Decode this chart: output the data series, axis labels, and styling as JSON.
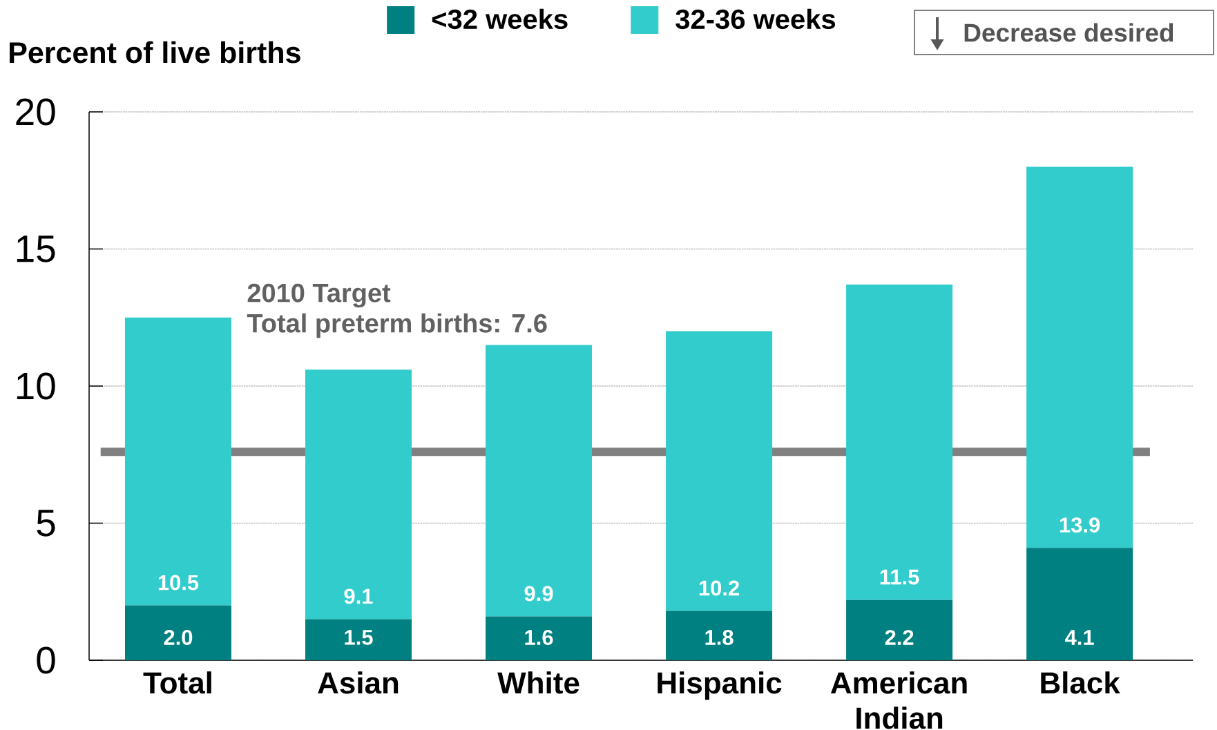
{
  "chart_data": {
    "type": "bar",
    "stacked": true,
    "ylabel": "Percent of live births",
    "categories": [
      "Total",
      "Asian",
      "White",
      "Hispanic",
      "American Indian",
      "Black"
    ],
    "series": [
      {
        "name": "<32 weeks",
        "color": "#008080",
        "values": [
          2.0,
          1.5,
          1.6,
          1.8,
          2.2,
          4.1
        ],
        "value_labels": [
          "2.0",
          "1.5",
          "1.6",
          "1.8",
          "2.2",
          "4.1"
        ]
      },
      {
        "name": "32-36 weeks",
        "color": "#33cccc",
        "values": [
          10.5,
          9.1,
          9.9,
          10.2,
          11.5,
          13.9
        ],
        "value_labels": [
          "10.5",
          "9.1",
          "9.9",
          "10.2",
          "11.5",
          "13.9"
        ]
      }
    ],
    "ylim": [
      0,
      20
    ],
    "yticks": [
      0,
      5,
      10,
      15,
      20
    ],
    "grid": "y",
    "legend": "top",
    "ref_lines": [
      {
        "axis": "y",
        "value": 7.6,
        "color": "#808080"
      }
    ],
    "annotations": [
      "2010 Target",
      "Total preterm births: 7.6",
      "Decrease desired"
    ]
  }
}
